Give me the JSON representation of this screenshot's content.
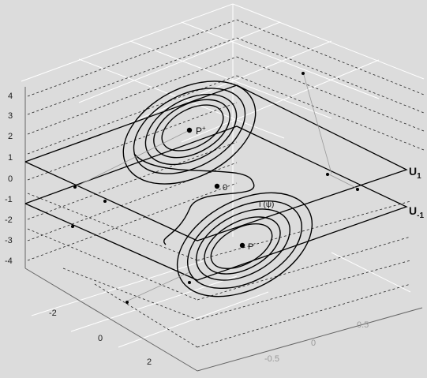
{
  "z_ticks": [
    "4",
    "3",
    "2",
    "1",
    "0",
    "-1",
    "-2",
    "-3",
    "-4"
  ],
  "x_ticks": [
    "-2",
    "0",
    "2"
  ],
  "y_ticks": [
    "0.5",
    "0",
    "-0.5"
  ],
  "plane_labels": {
    "u1_main": "U",
    "u1_sub": "1",
    "um1_main": "U",
    "um1_sub": "-1"
  },
  "point_labels": {
    "p_plus_main": "P",
    "p_plus_sup": "+",
    "origin": "0",
    "p_minus_main": "P",
    "p_minus_sup": "-",
    "curve_label": "Γ(ψ)"
  },
  "colors": {
    "background": "#dcdcdc",
    "curve": "#000000",
    "grid": "#ffffff",
    "dashed_grid": "#000000"
  }
}
